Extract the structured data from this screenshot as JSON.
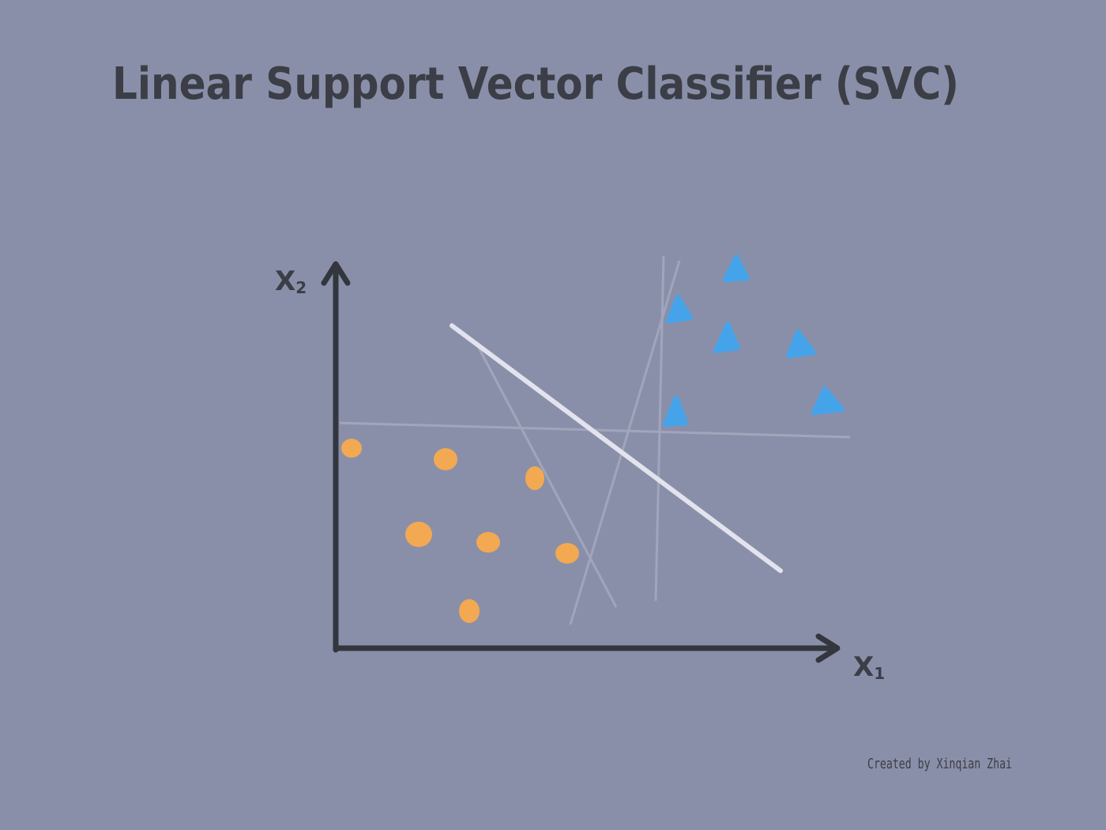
{
  "title": "Linear Support Vector Classifier (SVC)",
  "y_axis_label": {
    "letter": "X",
    "subscript": "2"
  },
  "x_axis_label": {
    "letter": "X",
    "subscript": "1"
  },
  "credit": "Created by Xinqian Zhai"
}
